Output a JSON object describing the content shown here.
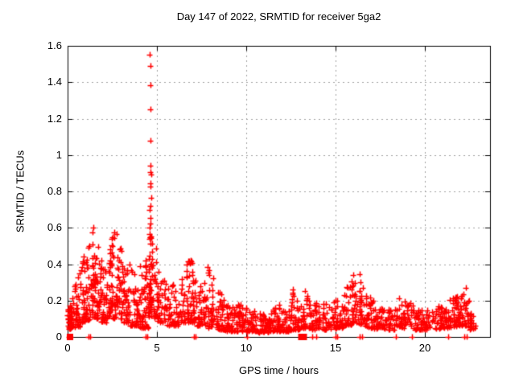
{
  "title": "Day 147 of 2022, SRMTID for receiver 5ga2",
  "chart_data": {
    "type": "scatter",
    "title": "Day 147 of 2022, SRMTID for receiver 5ga2",
    "xlabel": "GPS time / hours",
    "ylabel": "SRMTID / TECUs",
    "xlim": [
      0,
      23.65
    ],
    "ylim": [
      0,
      1.6
    ],
    "xticks": [
      0,
      5,
      10,
      15,
      20
    ],
    "xtick_labels": [
      "0",
      "5",
      "10",
      "15",
      "20"
    ],
    "yticks": [
      0,
      0.2,
      0.4,
      0.6,
      0.8,
      1,
      1.2,
      1.4,
      1.6
    ],
    "ytick_labels": [
      "0",
      "0.2",
      "0.4",
      "0.6",
      "0.8",
      "1",
      "1.2",
      "1.4",
      "1.6"
    ],
    "grid": true,
    "legend": "none",
    "colors": {
      "marker": "#ff0000",
      "axis": "#000000",
      "grid": "#a0a0a0",
      "background": "#ffffff",
      "text": "#000000"
    },
    "marker": {
      "shape": "plus",
      "size": 7,
      "stroke": 1.5
    },
    "series": [
      {
        "name": "SRMTID",
        "seed": 147,
        "spike_points": [
          [
            4.61,
            1.55
          ],
          [
            4.62,
            1.49
          ],
          [
            4.63,
            1.385
          ],
          [
            4.63,
            1.25
          ],
          [
            4.63,
            1.08
          ],
          [
            4.66,
            0.94
          ],
          [
            4.62,
            0.905
          ],
          [
            4.67,
            0.895
          ],
          [
            4.62,
            0.845
          ],
          [
            4.65,
            0.825
          ],
          [
            4.67,
            0.765
          ],
          [
            4.62,
            0.72
          ],
          [
            4.6,
            0.7
          ],
          [
            4.66,
            0.655
          ],
          [
            4.64,
            0.625
          ],
          [
            4.61,
            0.6
          ],
          [
            4.59,
            0.565
          ],
          [
            4.68,
            0.545
          ],
          [
            1.45,
            0.6
          ],
          [
            1.38,
            0.575
          ],
          [
            2.62,
            0.575
          ],
          [
            2.75,
            0.565
          ],
          [
            13.3,
            0.253
          ],
          [
            12.62,
            0.26
          ],
          [
            16.35,
            0.345
          ],
          [
            22.3,
            0.27
          ]
        ],
        "axis_points": [
          0.07,
          0.18,
          1.15,
          1.28,
          4.35,
          4.48,
          7.05,
          7.18,
          10.05,
          13.7,
          13.9,
          15.0,
          15.1,
          16.37,
          16.5,
          18.4,
          19.3,
          21.3,
          22.2,
          22.35
        ],
        "axis_squares": [
          {
            "x": 0.12,
            "w": 8
          },
          {
            "x": 13.15,
            "w": 11
          }
        ],
        "clusters": [
          [
            0.02,
            0.3,
            48,
            0.04,
            0.05,
            0.15,
            0.22
          ],
          [
            0.3,
            0.8,
            42,
            0.05,
            0.06,
            0.28,
            0.38
          ],
          [
            0.8,
            1.3,
            52,
            0.08,
            0.1,
            0.42,
            0.54
          ],
          [
            1.3,
            1.75,
            58,
            0.1,
            0.1,
            0.58,
            0.5
          ],
          [
            1.75,
            2.2,
            46,
            0.08,
            0.08,
            0.46,
            0.36
          ],
          [
            2.2,
            2.5,
            36,
            0.1,
            0.12,
            0.4,
            0.56
          ],
          [
            2.5,
            3.0,
            48,
            0.1,
            0.1,
            0.57,
            0.48
          ],
          [
            3.0,
            3.4,
            40,
            0.08,
            0.08,
            0.48,
            0.36
          ],
          [
            3.4,
            3.9,
            36,
            0.06,
            0.06,
            0.42,
            0.33
          ],
          [
            3.9,
            4.3,
            32,
            0.05,
            0.05,
            0.42,
            0.36
          ],
          [
            4.3,
            4.55,
            26,
            0.05,
            0.05,
            0.44,
            0.4
          ],
          [
            4.5,
            5.0,
            48,
            0.1,
            0.1,
            0.55,
            0.5
          ],
          [
            4.58,
            4.72,
            18,
            0.2,
            0.2,
            0.56,
            0.56
          ],
          [
            5.0,
            5.5,
            38,
            0.08,
            0.08,
            0.42,
            0.3
          ],
          [
            5.5,
            6.3,
            48,
            0.06,
            0.06,
            0.3,
            0.28
          ],
          [
            6.3,
            6.8,
            38,
            0.08,
            0.08,
            0.33,
            0.44
          ],
          [
            6.8,
            7.2,
            38,
            0.08,
            0.08,
            0.46,
            0.35
          ],
          [
            7.2,
            7.7,
            36,
            0.06,
            0.06,
            0.33,
            0.3
          ],
          [
            7.7,
            8.2,
            38,
            0.05,
            0.05,
            0.42,
            0.31
          ],
          [
            8.2,
            8.8,
            42,
            0.04,
            0.04,
            0.3,
            0.21
          ],
          [
            8.8,
            9.4,
            42,
            0.03,
            0.03,
            0.18,
            0.16
          ],
          [
            9.4,
            9.8,
            32,
            0.03,
            0.03,
            0.22,
            0.16
          ],
          [
            9.8,
            10.6,
            52,
            0.03,
            0.03,
            0.17,
            0.14
          ],
          [
            10.6,
            11.5,
            56,
            0.02,
            0.03,
            0.13,
            0.13
          ],
          [
            11.5,
            12.0,
            36,
            0.03,
            0.03,
            0.23,
            0.16
          ],
          [
            12.0,
            12.5,
            36,
            0.03,
            0.03,
            0.16,
            0.14
          ],
          [
            12.5,
            13.0,
            36,
            0.04,
            0.04,
            0.26,
            0.2
          ],
          [
            13.0,
            13.6,
            36,
            0.05,
            0.05,
            0.28,
            0.21
          ],
          [
            13.6,
            14.6,
            56,
            0.04,
            0.04,
            0.2,
            0.18
          ],
          [
            14.6,
            15.4,
            46,
            0.04,
            0.05,
            0.18,
            0.22
          ],
          [
            15.4,
            16.0,
            42,
            0.06,
            0.07,
            0.26,
            0.32
          ],
          [
            16.0,
            16.75,
            52,
            0.08,
            0.06,
            0.35,
            0.27
          ],
          [
            16.75,
            17.4,
            42,
            0.05,
            0.04,
            0.24,
            0.18
          ],
          [
            17.4,
            18.5,
            56,
            0.04,
            0.04,
            0.16,
            0.16
          ],
          [
            18.5,
            19.5,
            52,
            0.05,
            0.04,
            0.22,
            0.18
          ],
          [
            19.5,
            20.5,
            52,
            0.04,
            0.04,
            0.15,
            0.15
          ],
          [
            20.5,
            21.3,
            46,
            0.04,
            0.05,
            0.17,
            0.18
          ],
          [
            21.3,
            21.9,
            42,
            0.05,
            0.06,
            0.2,
            0.24
          ],
          [
            21.9,
            22.5,
            42,
            0.06,
            0.06,
            0.27,
            0.2
          ],
          [
            22.5,
            22.85,
            20,
            0.04,
            0.04,
            0.14,
            0.1
          ]
        ]
      }
    ]
  }
}
